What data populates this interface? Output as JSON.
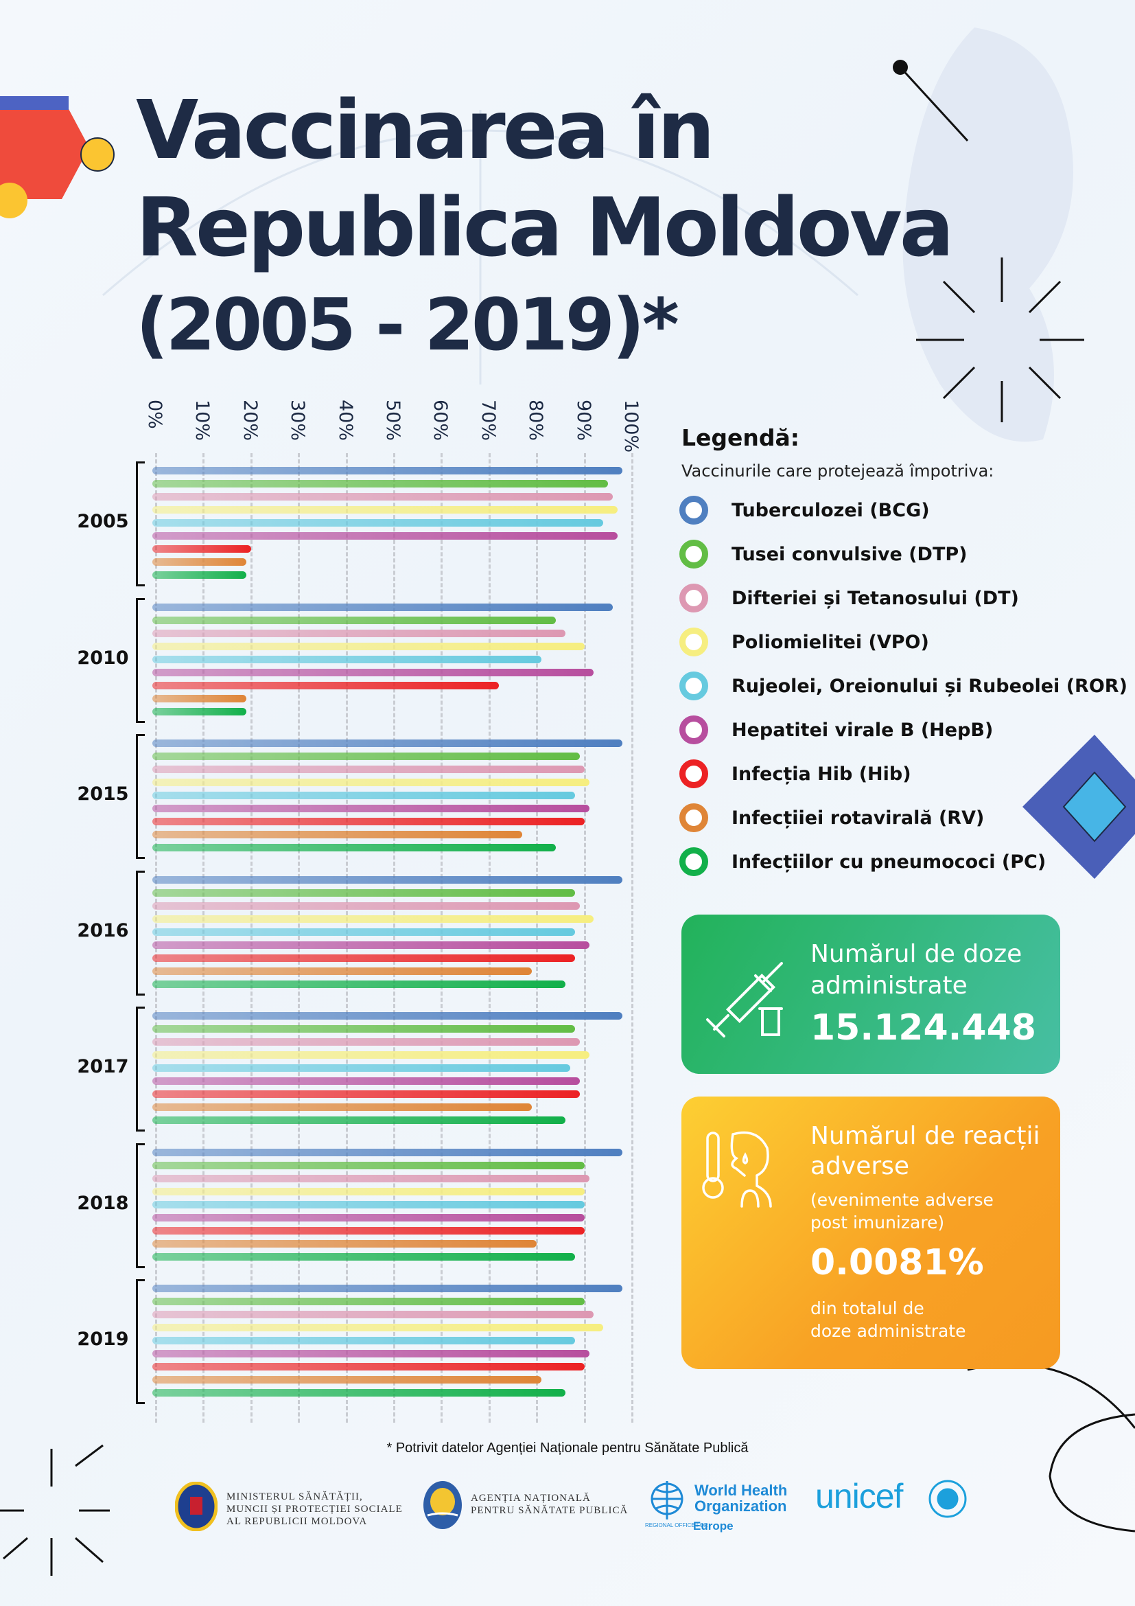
{
  "title": {
    "line1": "Vaccinarea în",
    "line2": "Republica Moldova",
    "line3": "(2005 - 2019)*"
  },
  "legend": {
    "title": "Legendă:",
    "subtitle": "Vaccinurile care protejează împotriva:"
  },
  "chart_data": {
    "type": "bar",
    "orientation": "horizontal",
    "xlim": [
      0,
      100
    ],
    "x_tick_labels": [
      "0%",
      "10%",
      "20%",
      "30%",
      "40%",
      "50%",
      "60%",
      "70%",
      "80%",
      "90%",
      "100%"
    ],
    "grid": true,
    "legend_position": "right",
    "categories": [
      "2005",
      "2010",
      "2015",
      "2016",
      "2017",
      "2018",
      "2019"
    ],
    "series": [
      {
        "name": "Tuberculozei (BCG)",
        "color": "#4f7fc0",
        "values": [
          98,
          96,
          98,
          98,
          98,
          98,
          98
        ]
      },
      {
        "name": "Tusei convulsive (DTP)",
        "color": "#62bd45",
        "values": [
          95,
          84,
          89,
          88,
          88,
          90,
          90
        ]
      },
      {
        "name": "Difteriei și Tetanosului (DT)",
        "color": "#dd98b2",
        "values": [
          96,
          86,
          90,
          89,
          89,
          91,
          92
        ]
      },
      {
        "name": "Poliomielitei (VPO)",
        "color": "#f6ee80",
        "values": [
          97,
          90,
          91,
          92,
          91,
          90,
          94
        ]
      },
      {
        "name": "Rujeolei, Oreionului și Rubeolei (ROR)",
        "color": "#66cadf",
        "values": [
          94,
          81,
          88,
          88,
          87,
          90,
          88
        ]
      },
      {
        "name": "Hepatitei virale B (HepB)",
        "color": "#b74e9e",
        "values": [
          97,
          92,
          91,
          91,
          89,
          90,
          91
        ]
      },
      {
        "name": "Infecția Hib (Hib)",
        "color": "#ec2224",
        "values": [
          20,
          72,
          90,
          88,
          89,
          90,
          90
        ]
      },
      {
        "name": "Infecțiiei rotavirală (RV)",
        "color": "#df8537",
        "values": [
          19,
          19,
          77,
          79,
          79,
          80,
          81
        ]
      },
      {
        "name": "Infecțiilor cu pneumococi (PC)",
        "color": "#12b04a",
        "values": [
          19,
          19,
          84,
          86,
          86,
          88,
          86
        ]
      }
    ]
  },
  "doses_box": {
    "heading_line1": "Numărul de doze",
    "heading_line2": "administrate",
    "value": "15.124.448",
    "icon": "syringe-icon"
  },
  "reactions_box": {
    "heading_line1": "Numărul de reacții",
    "heading_line2": "adverse",
    "note_line1": "(evenimente adverse",
    "note_line2": "post imunizare)",
    "value": "0.0081%",
    "footer_line1": "din totalul de",
    "footer_line2": "doze administrate",
    "icon": "fever-person-icon"
  },
  "footnote": "* Potrivit datelor Agenției Naționale pentru Sănătate Publică",
  "logos": {
    "ministry": {
      "line1": "MINISTERUL SĂNĂTĂȚII,",
      "line2": "MUNCII ȘI PROTECȚIEI SOCIALE",
      "line3": "AL REPUBLICII MOLDOVA"
    },
    "agency": {
      "line1": "AGENȚIA NAȚIONALĂ",
      "line2": "PENTRU SĂNĂTATE PUBLICĂ"
    },
    "who": {
      "line1": "World Health",
      "line2": "Organization",
      "region_prefix": "REGIONAL OFFICE FOR",
      "region": "Europe"
    },
    "unicef": "unicef"
  }
}
